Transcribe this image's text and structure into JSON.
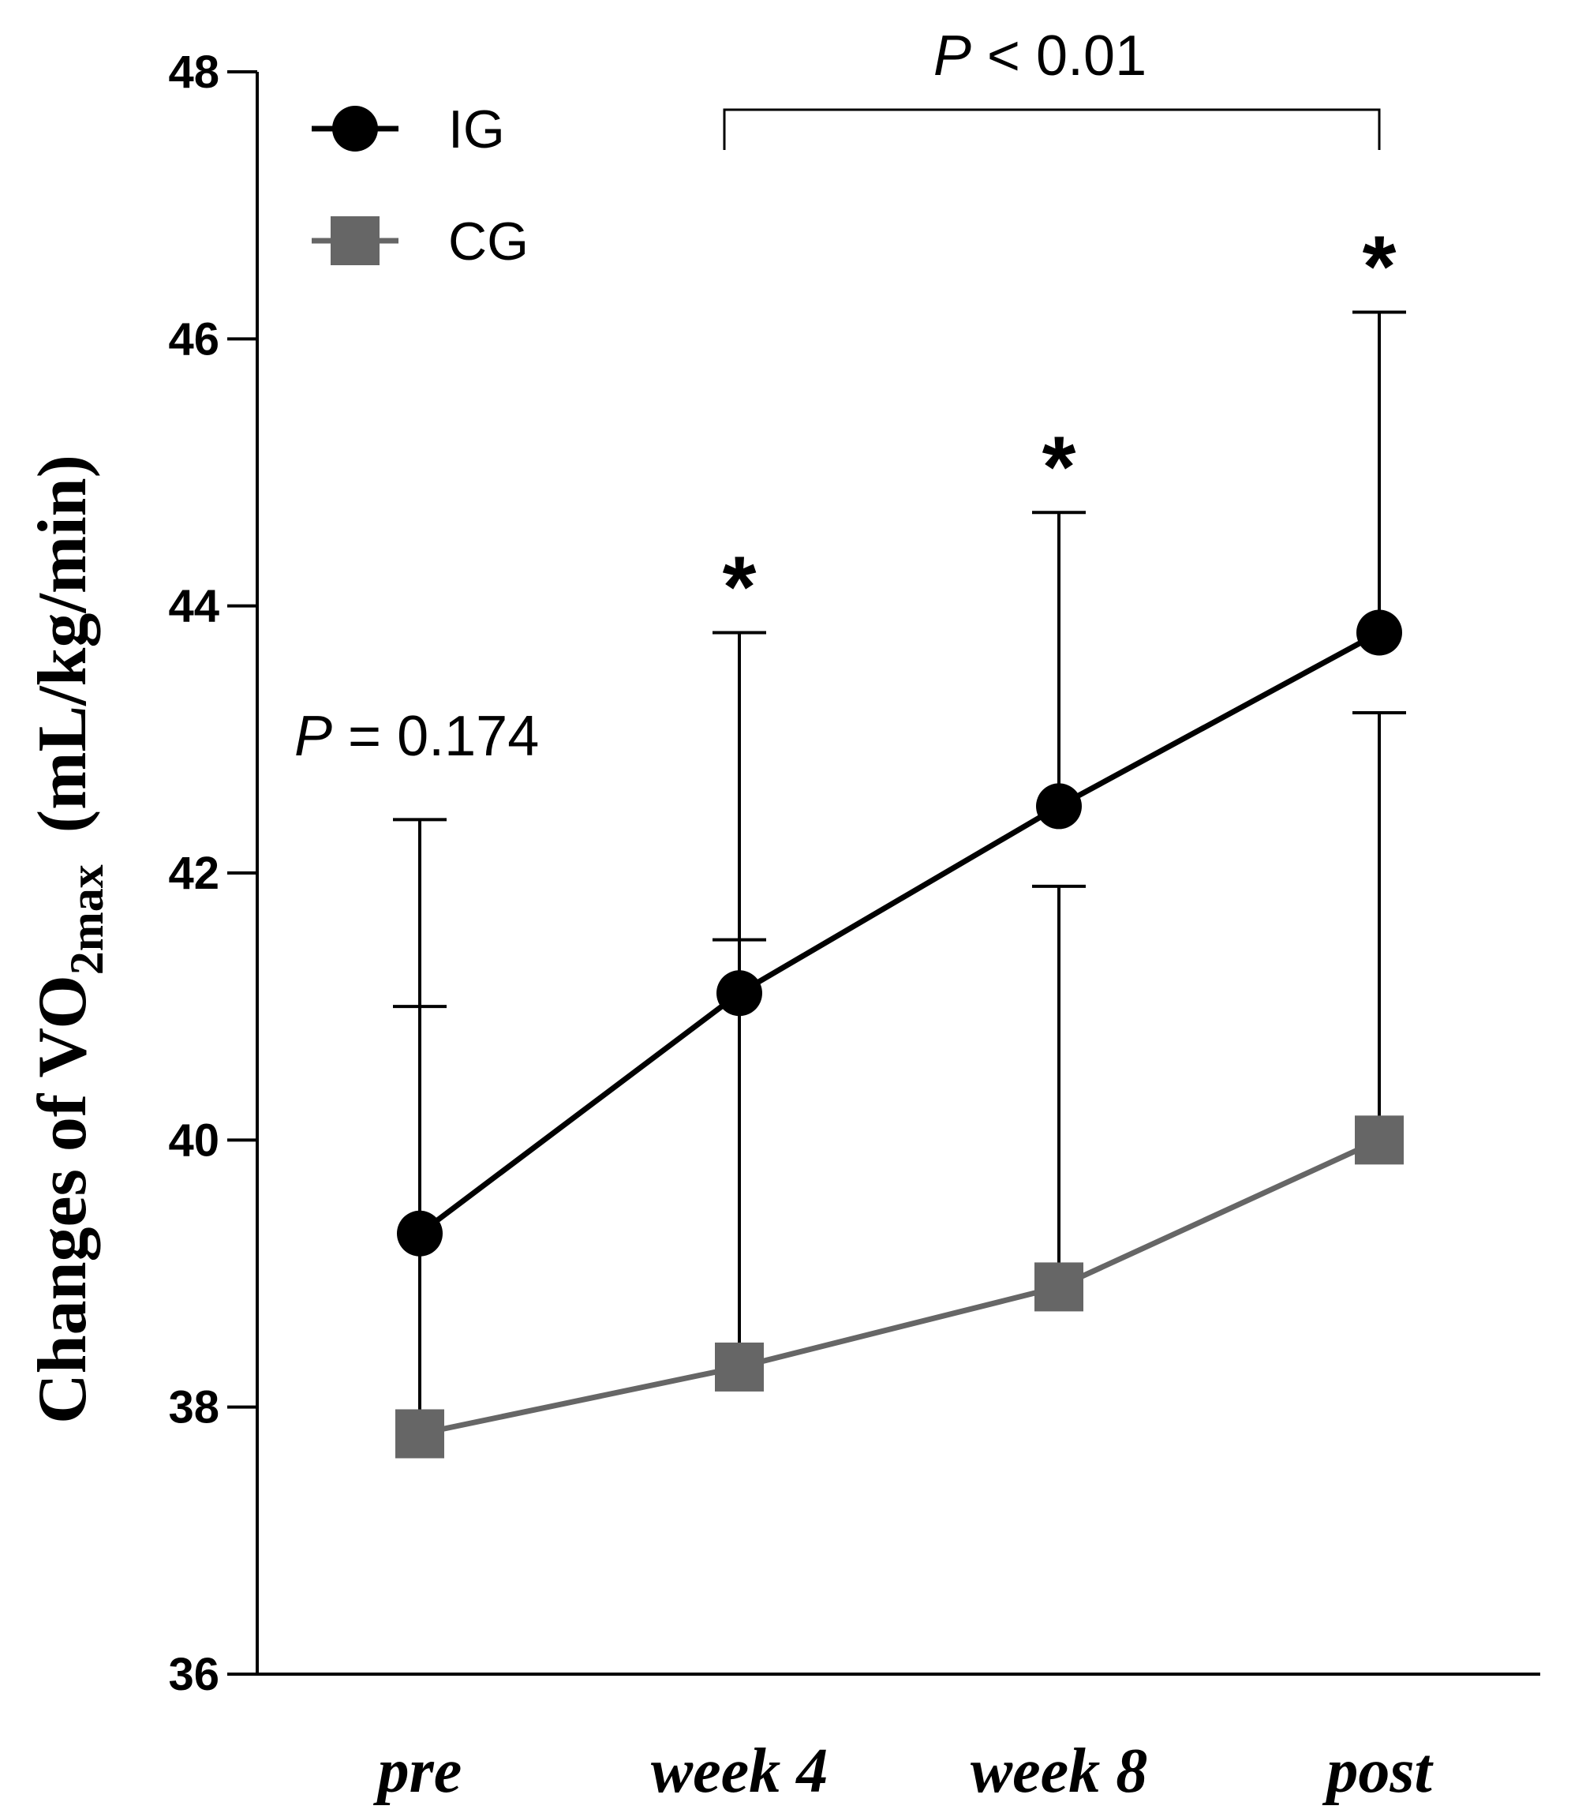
{
  "chart_data": {
    "type": "line",
    "categories": [
      "pre",
      "week 4",
      "week 8",
      "post"
    ],
    "ylabel_main": "Changes of VO",
    "ylabel_sub": "2max",
    "ylabel_unit": "(mL/kg/min)",
    "ylim": [
      36,
      48
    ],
    "yticks": [
      "36",
      "38",
      "40",
      "42",
      "44",
      "46",
      "48"
    ],
    "series": [
      {
        "name": "IG",
        "color": "#000000",
        "marker": "circle",
        "values": [
          39.3,
          41.1,
          42.5,
          43.8
        ],
        "error_upper": [
          42.4,
          43.8,
          44.7,
          46.2
        ]
      },
      {
        "name": "CG",
        "color": "#666666",
        "marker": "square",
        "values": [
          37.8,
          38.3,
          38.9,
          40.0
        ],
        "error_upper": [
          41.0,
          41.5,
          41.9,
          43.2
        ]
      }
    ],
    "annotations": {
      "p_pre_italic": "P",
      "p_pre_value": "= 0.174",
      "p_bracket_italic": "P",
      "p_bracket_value": "< 0.01",
      "bracket_from": "week 4",
      "bracket_to": "post",
      "significance_marker": "*",
      "significance_categories": [
        "week 4",
        "week 8",
        "post"
      ]
    }
  }
}
